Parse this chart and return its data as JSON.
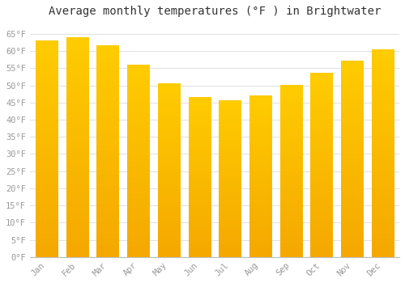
{
  "title": "Average monthly temperatures (°F ) in Brightwater",
  "months": [
    "Jan",
    "Feb",
    "Mar",
    "Apr",
    "May",
    "Jun",
    "Jul",
    "Aug",
    "Sep",
    "Oct",
    "Nov",
    "Dec"
  ],
  "values": [
    63,
    64,
    61.5,
    56,
    50.5,
    46.5,
    45.5,
    47,
    50,
    53.5,
    57,
    60.5
  ],
  "bar_color_top": "#FFCC00",
  "bar_color_bottom": "#F5A800",
  "background_color": "#FFFFFF",
  "grid_color": "#E0E0E0",
  "text_color": "#999999",
  "title_color": "#333333",
  "ylim": [
    0,
    68
  ],
  "ytick_step": 5,
  "title_fontsize": 10,
  "tick_fontsize": 7.5
}
